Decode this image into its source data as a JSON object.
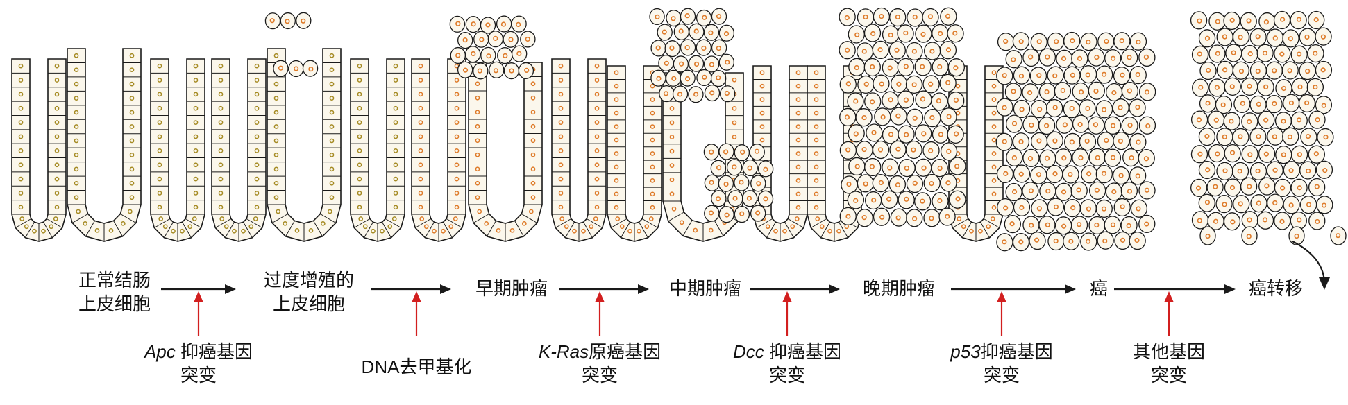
{
  "colors": {
    "line": "#1a1a1a",
    "cell_fill": "#fbf7ec",
    "nucleus_normal": "#a58a22",
    "nucleus_tumor": "#de7a28",
    "event_arrow": "#d21f1f"
  },
  "stages": [
    {
      "line1": "正常结肠",
      "line2": "上皮细胞"
    },
    {
      "line1": "过度增殖的",
      "line2": "上皮细胞"
    },
    {
      "line1": "早期肿瘤",
      "line2": ""
    },
    {
      "line1": "中期肿瘤",
      "line2": ""
    },
    {
      "line1": "晚期肿瘤",
      "line2": ""
    },
    {
      "line1": "癌",
      "line2": ""
    },
    {
      "line1": "癌转移",
      "line2": ""
    }
  ],
  "events": [
    {
      "gene": "Apc",
      "text": "抑癌基因",
      "line2": "突变"
    },
    {
      "gene": "",
      "text": "DNA去甲基化",
      "line2": ""
    },
    {
      "gene": "K-Ras",
      "text": "原癌基因",
      "line2": "突变"
    },
    {
      "gene": "Dcc",
      "text": "抑癌基因",
      "line2": "突变"
    },
    {
      "gene": "p53",
      "text": "抑癌基因",
      "line2": "突变"
    },
    {
      "gene": "",
      "text": "其他基因",
      "line2": "突变"
    }
  ]
}
